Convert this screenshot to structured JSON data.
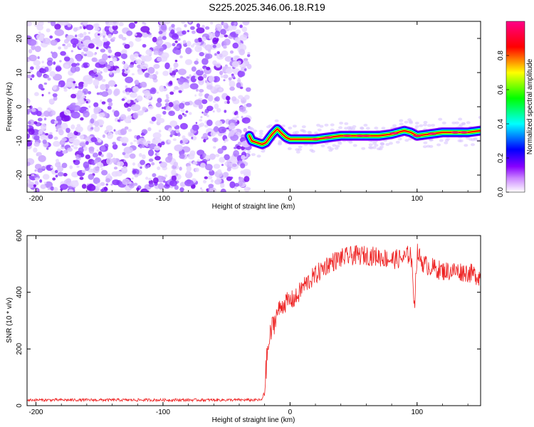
{
  "title": "S225.2025.346.06.18.R19",
  "chart_data": [
    {
      "type": "heatmap",
      "xlabel": "Height of straight line (km)",
      "ylabel": "Frequency (Hz)",
      "xlim": [
        -207,
        150
      ],
      "ylim": [
        -25,
        25
      ],
      "xticks": [
        -200,
        -100,
        0,
        100
      ],
      "yticks": [
        -20,
        -10,
        0,
        10,
        20
      ],
      "colorbar": {
        "label": "Normalized spectral amplitude",
        "range": [
          0,
          1
        ],
        "ticks": [
          0.0,
          0.2,
          0.4,
          0.6,
          0.8
        ],
        "colors": [
          "#ffffff",
          "#8800ff",
          "#0000ff",
          "#00ffff",
          "#00ff00",
          "#ffff00",
          "#ff0000",
          "#ff0088"
        ]
      },
      "noise_region_x": [
        -207,
        -32
      ],
      "ridge": {
        "x": [
          -32,
          -30,
          -26,
          -22,
          -19,
          -14,
          -10,
          -6,
          -3,
          0,
          5,
          10,
          20,
          30,
          40,
          50,
          60,
          70,
          80,
          85,
          90,
          95,
          100,
          110,
          120,
          130,
          140,
          150
        ],
        "y": [
          -8.5,
          -10,
          -10.5,
          -11,
          -10.5,
          -8,
          -6.5,
          -8,
          -9,
          -9.5,
          -9.5,
          -9.5,
          -9.5,
          -9,
          -8.5,
          -8.5,
          -8.5,
          -8.5,
          -8,
          -7.5,
          -7,
          -7.5,
          -8.5,
          -8,
          -7.5,
          -7.5,
          -7.5,
          -7
        ]
      }
    },
    {
      "type": "line",
      "xlabel": "Height of straight line (km)",
      "ylabel": "SNR (10 * v/v)",
      "xlim": [
        -207,
        150
      ],
      "ylim": [
        0,
        600
      ],
      "xticks": [
        -200,
        -100,
        0,
        100
      ],
      "yticks": [
        0,
        200,
        400,
        600
      ],
      "color": "#ee2222",
      "series": [
        {
          "x": [
            -207,
            -180,
            -150,
            -120,
            -90,
            -60,
            -40,
            -22,
            -20,
            -18,
            -15,
            -10,
            -5,
            0,
            5,
            10,
            20,
            30,
            40,
            50,
            60,
            70,
            80,
            90,
            95,
            98,
            100,
            105,
            110,
            120,
            130,
            140,
            150
          ],
          "y": [
            20,
            20,
            20,
            20,
            20,
            20,
            20,
            20,
            60,
            180,
            260,
            330,
            360,
            370,
            380,
            420,
            460,
            500,
            520,
            530,
            530,
            525,
            515,
            520,
            540,
            360,
            540,
            500,
            490,
            475,
            475,
            470,
            455
          ]
        }
      ]
    }
  ]
}
